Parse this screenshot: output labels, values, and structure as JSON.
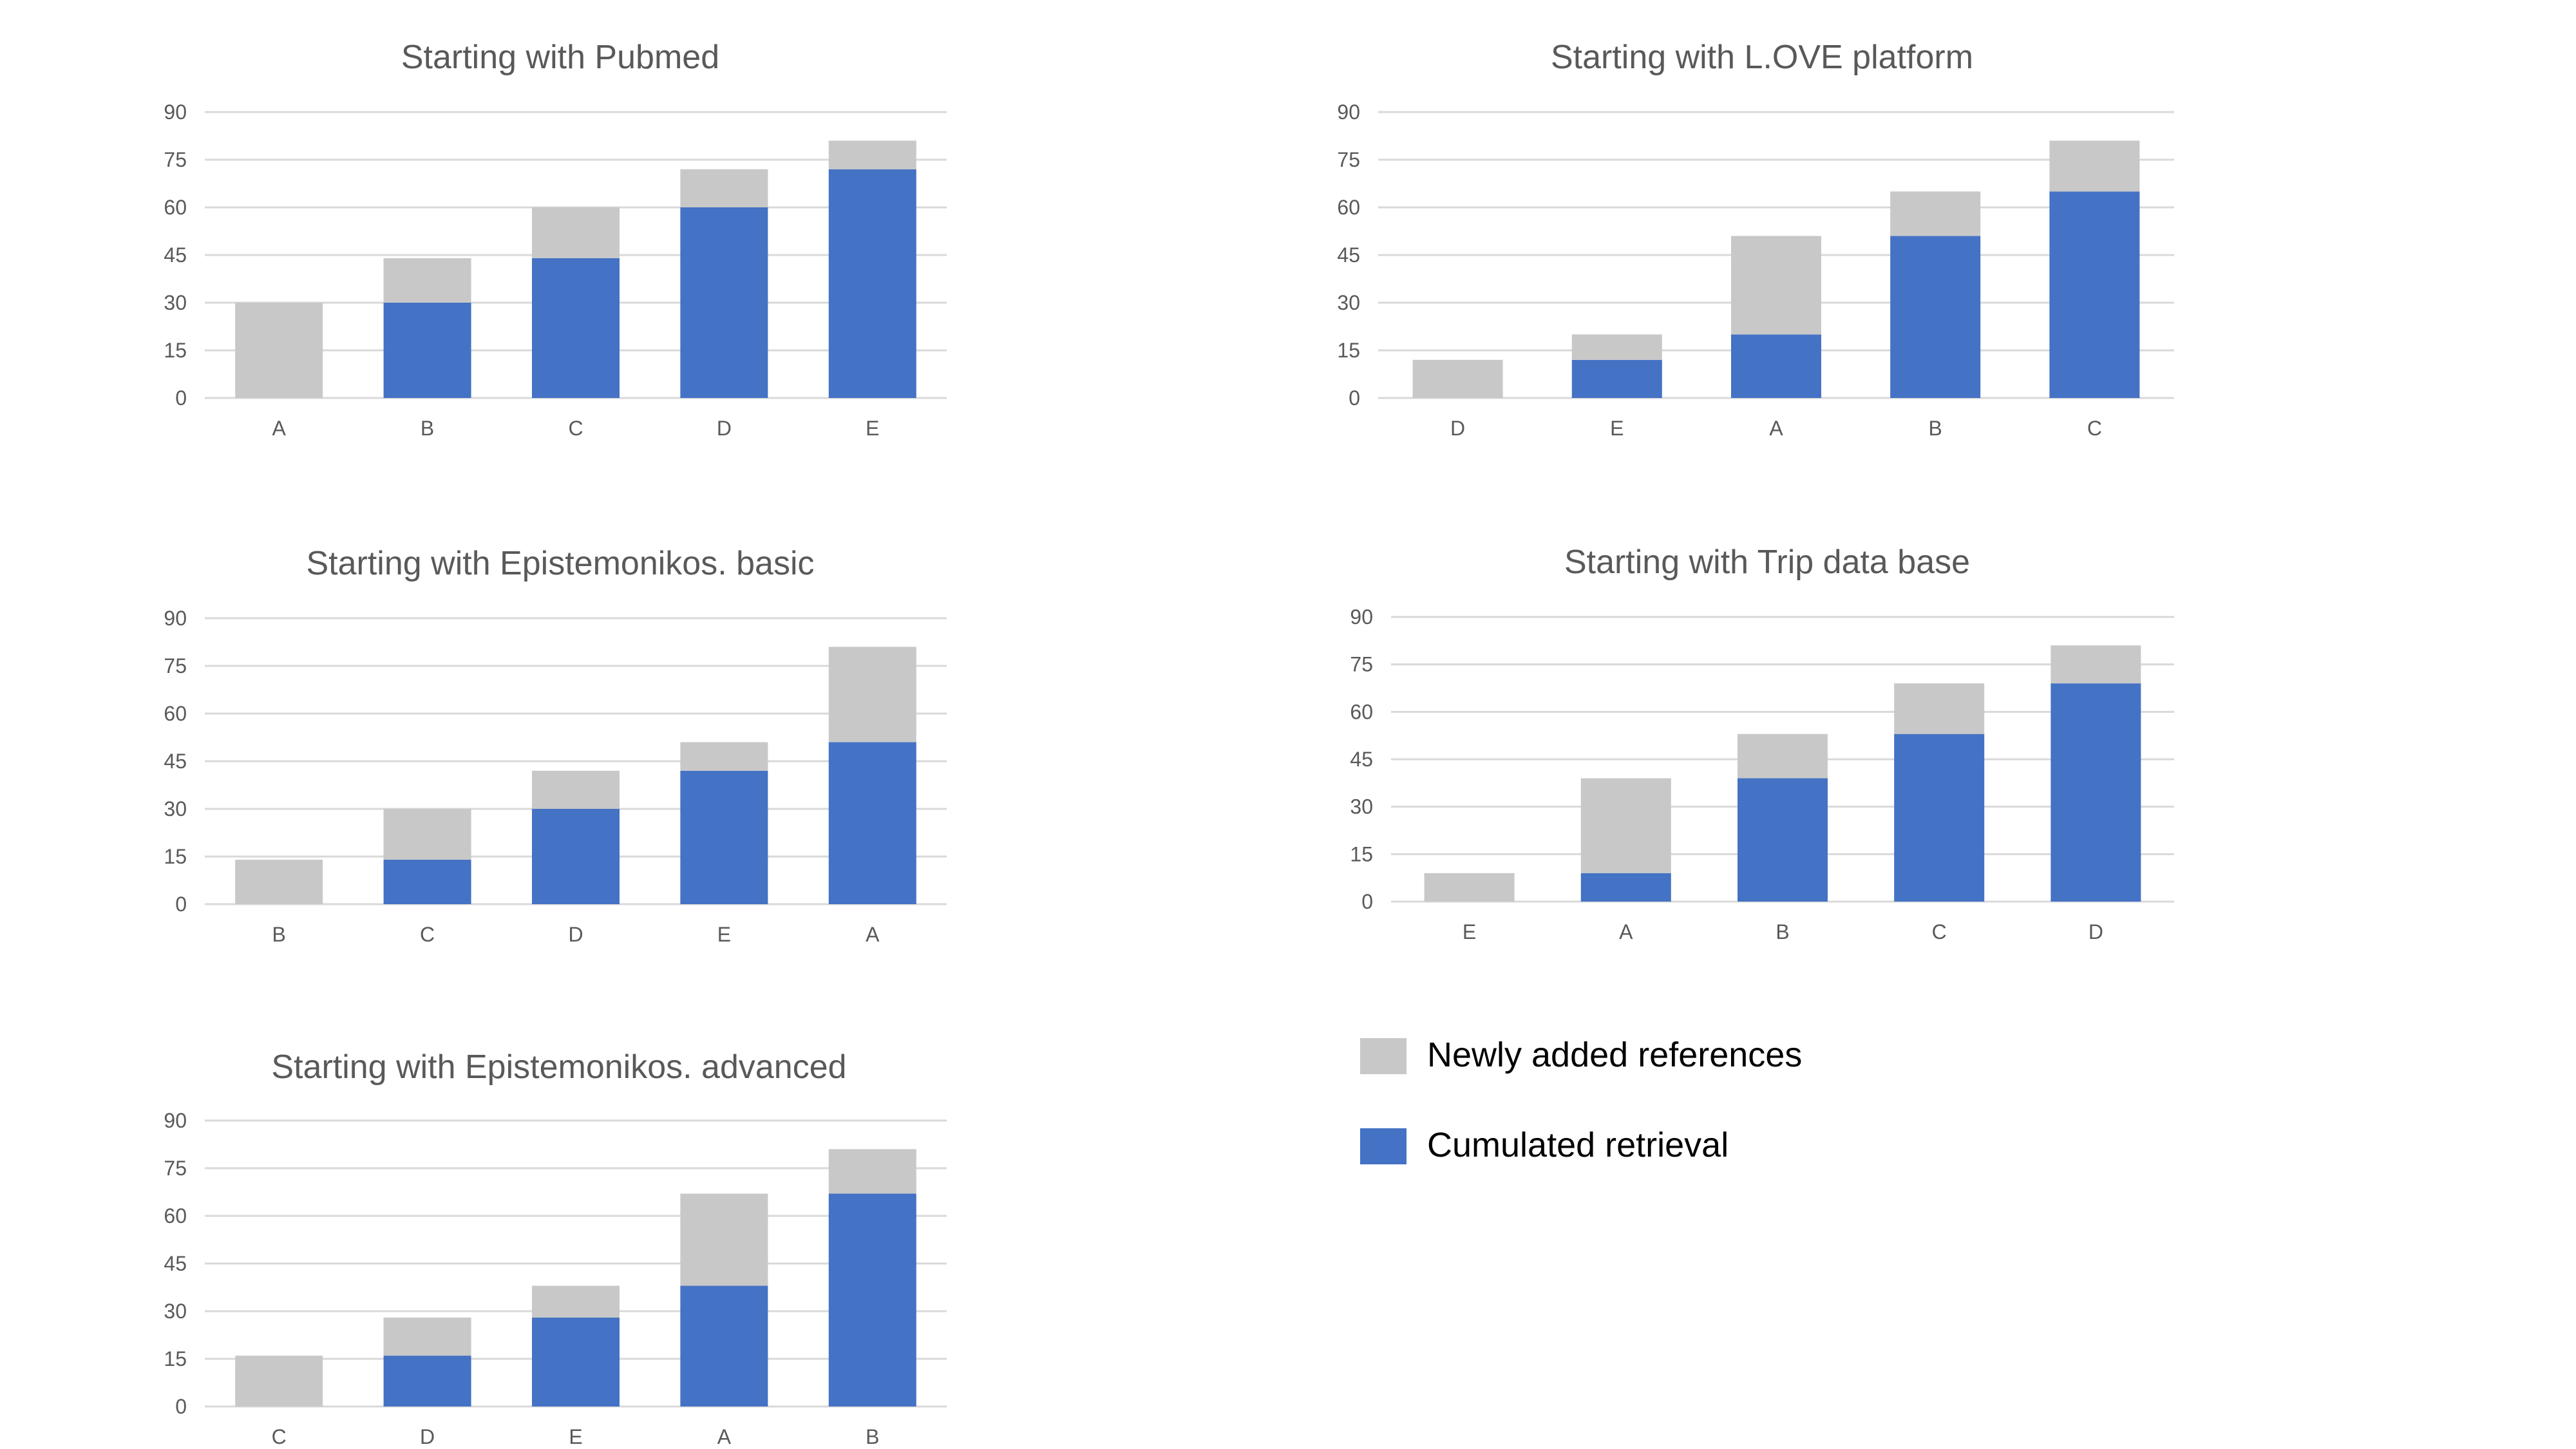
{
  "legend": {
    "items": [
      {
        "label": "Newly added references",
        "color": "#c8c8c8"
      },
      {
        "label": "Cumulated retrieval",
        "color": "#4472c4"
      }
    ]
  },
  "chart_data": [
    {
      "type": "bar",
      "stacked": true,
      "title": "Starting with Pubmed",
      "categories": [
        "A",
        "B",
        "C",
        "D",
        "E"
      ],
      "series": [
        {
          "name": "Cumulated retrieval",
          "values": [
            0,
            30,
            44,
            60,
            72
          ]
        },
        {
          "name": "Newly added references",
          "values": [
            30,
            14,
            16,
            12,
            9
          ]
        }
      ],
      "yticks": [
        0,
        15,
        30,
        45,
        60,
        75,
        90
      ],
      "ylim": [
        0,
        90
      ],
      "grid": true
    },
    {
      "type": "bar",
      "stacked": true,
      "title": "Starting with L.OVE platform",
      "categories": [
        "D",
        "E",
        "A",
        "B",
        "C"
      ],
      "series": [
        {
          "name": "Cumulated retrieval",
          "values": [
            0,
            12,
            20,
            51,
            65
          ]
        },
        {
          "name": "Newly added references",
          "values": [
            12,
            8,
            31,
            14,
            16
          ]
        }
      ],
      "yticks": [
        0,
        15,
        30,
        45,
        60,
        75,
        90
      ],
      "ylim": [
        0,
        90
      ],
      "grid": true
    },
    {
      "type": "bar",
      "stacked": true,
      "title": "Starting with Epistemonikos. basic",
      "categories": [
        "B",
        "C",
        "D",
        "E",
        "A"
      ],
      "series": [
        {
          "name": "Cumulated retrieval",
          "values": [
            0,
            14,
            30,
            42,
            51
          ]
        },
        {
          "name": "Newly added references",
          "values": [
            14,
            16,
            12,
            9,
            30
          ]
        }
      ],
      "yticks": [
        0,
        15,
        30,
        45,
        60,
        75,
        90
      ],
      "ylim": [
        0,
        90
      ],
      "grid": true
    },
    {
      "type": "bar",
      "stacked": true,
      "title": "Starting with Trip data base",
      "categories": [
        "E",
        "A",
        "B",
        "C",
        "D"
      ],
      "series": [
        {
          "name": "Cumulated retrieval",
          "values": [
            0,
            9,
            39,
            53,
            69
          ]
        },
        {
          "name": "Newly added references",
          "values": [
            9,
            30,
            14,
            16,
            12
          ]
        }
      ],
      "yticks": [
        0,
        15,
        30,
        45,
        60,
        75,
        90
      ],
      "ylim": [
        0,
        90
      ],
      "grid": true
    },
    {
      "type": "bar",
      "stacked": true,
      "title": "Starting with Epistemonikos. advanced",
      "categories": [
        "C",
        "D",
        "E",
        "A",
        "B"
      ],
      "series": [
        {
          "name": "Cumulated retrieval",
          "values": [
            0,
            16,
            28,
            38,
            67
          ]
        },
        {
          "name": "Newly added references",
          "values": [
            16,
            12,
            10,
            29,
            14
          ]
        }
      ],
      "yticks": [
        0,
        15,
        30,
        45,
        60,
        75,
        90
      ],
      "ylim": [
        0,
        90
      ],
      "grid": true
    }
  ]
}
